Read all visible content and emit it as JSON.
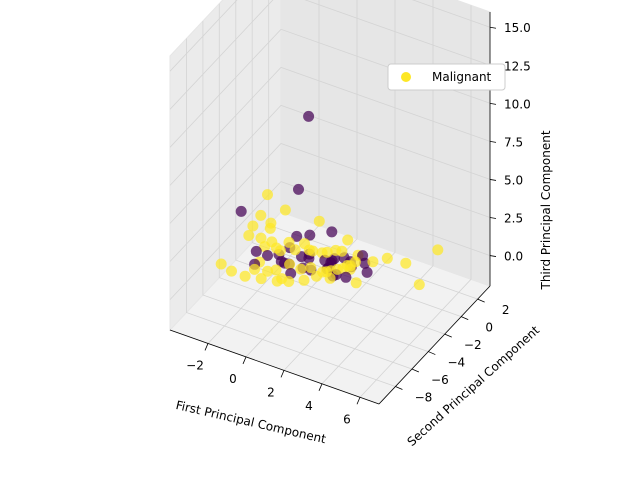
{
  "chart_data": {
    "type": "scatter",
    "projection": "3d",
    "grid": true,
    "legend_placement": "upper-right",
    "axes": {
      "x": {
        "label": "First Principal Component",
        "ticks": [
          "6",
          "4",
          "2",
          "0",
          "−2"
        ],
        "range": [
          -4,
          7
        ]
      },
      "y": {
        "label": "Second Principal Component",
        "ticks": [
          "−8",
          "−6",
          "−4",
          "−2",
          "0",
          "2"
        ],
        "range": [
          -10,
          3.5
        ]
      },
      "z": {
        "label": "Third Principal Component",
        "ticks": [
          "0.0",
          "2.5",
          "5.0",
          "7.5",
          "10.0",
          "12.5",
          "15.0"
        ],
        "range": [
          -2,
          16
        ]
      }
    },
    "series": [
      {
        "name": "Malignant",
        "color": "#fde725",
        "points": [
          [
            6.2,
            -1,
            2.6
          ],
          [
            5.4,
            -1.4,
            0.2
          ],
          [
            4.3,
            -0.5,
            0.6
          ],
          [
            3.5,
            -0.9,
            0.8
          ],
          [
            3,
            -1.5,
            0.7
          ],
          [
            2.6,
            -2.7,
            1.2
          ],
          [
            2.3,
            -3,
            1
          ],
          [
            2,
            -3.5,
            0.9
          ],
          [
            1.6,
            -3.9,
            0.8
          ],
          [
            1.2,
            -4.2,
            0.5
          ],
          [
            0.8,
            -4.8,
            0.4
          ],
          [
            0.3,
            -5.5,
            0.5
          ],
          [
            0,
            -6.2,
            0.8
          ],
          [
            -0.5,
            -7,
            1.2
          ],
          [
            -1,
            -7.8,
            1.6
          ],
          [
            -1.5,
            -8.3,
            2
          ],
          [
            -2,
            -8.4,
            2.3
          ],
          [
            2.9,
            -3.3,
            0.3
          ],
          [
            2.5,
            -3.1,
            0.9
          ],
          [
            2.2,
            -2.4,
            0.6
          ],
          [
            1.9,
            -2.6,
            0.4
          ],
          [
            1.4,
            -2.9,
            0.2
          ],
          [
            1,
            -3,
            0
          ],
          [
            0.6,
            -3.5,
            0.4
          ],
          [
            0.2,
            -3.8,
            0.3
          ],
          [
            -0.3,
            -4,
            0.5
          ],
          [
            -0.8,
            -4.5,
            0.2
          ],
          [
            -1.2,
            -4.6,
            0
          ],
          [
            1.5,
            -1.8,
            0.9
          ],
          [
            1,
            -1.4,
            0.5
          ],
          [
            0.5,
            -1.9,
            0.4
          ],
          [
            0,
            -2.3,
            0.6
          ],
          [
            -0.6,
            -1.5,
            0.3
          ],
          [
            -1.2,
            -2,
            0.4
          ],
          [
            -1.6,
            -2.6,
            0.2
          ],
          [
            -2,
            -3.1,
            0.4
          ],
          [
            -2.4,
            -1.5,
            0.5
          ],
          [
            -2.8,
            -1.7,
            -0.2
          ],
          [
            -3.1,
            -2.5,
            0.3
          ],
          [
            -2.8,
            -0.5,
            0.1
          ],
          [
            -2.6,
            0.8,
            0.3
          ],
          [
            -3.2,
            -0.8,
            0.6
          ],
          [
            0.9,
            -2.2,
            0.8
          ],
          [
            0.4,
            -2.8,
            1
          ],
          [
            -0.4,
            -3.1,
            0.9
          ],
          [
            -1,
            -3.5,
            0.8
          ],
          [
            -1.5,
            -3.4,
            1.1
          ],
          [
            1.7,
            -3.7,
            0.3
          ],
          [
            -0.2,
            -5.2,
            0.3
          ],
          [
            -1.8,
            -4.2,
            0.1
          ],
          [
            -0.9,
            1,
            0.2
          ],
          [
            -3.4,
            -1.3,
            0.1
          ],
          [
            1.2,
            -0.4,
            0.7
          ],
          [
            2,
            -1,
            0.4
          ],
          [
            -0.6,
            -6,
            6.1
          ],
          [
            -1.5,
            -5.5,
            0.5
          ]
        ]
      },
      {
        "name": "",
        "color": "#440154",
        "points": [
          [
            1,
            -4.7,
            11.2
          ],
          [
            0.6,
            -5,
            6.4
          ],
          [
            -2.2,
            -5.5,
            4
          ],
          [
            3,
            -2.2,
            0.4
          ],
          [
            2.2,
            -0.9,
            0.4
          ],
          [
            2,
            -1.8,
            0.1
          ],
          [
            2.4,
            -1.1,
            0.1
          ],
          [
            1.8,
            -3.2,
            0.3
          ],
          [
            1.5,
            -2.9,
            -0.1
          ],
          [
            1.2,
            -2.7,
            0.2
          ],
          [
            1.1,
            -0.6,
            -0.4
          ],
          [
            0.7,
            -1.3,
            -0.5
          ],
          [
            0.9,
            -2.2,
            -0.3
          ],
          [
            0.6,
            -1.8,
            -0.1
          ],
          [
            0.3,
            -2.8,
            -0.3
          ],
          [
            0.5,
            -0.7,
            -0.8
          ],
          [
            -0.2,
            -2.6,
            -0.5
          ],
          [
            -0.3,
            -1.6,
            -0.2
          ],
          [
            -0.5,
            -1.2,
            -0.8
          ],
          [
            -0.8,
            -1.4,
            -0.7
          ],
          [
            -1,
            -3,
            -0.3
          ],
          [
            -1.3,
            -2.7,
            -0.5
          ],
          [
            -1.2,
            -1.9,
            0
          ],
          [
            -1.6,
            -2.3,
            -0.4
          ],
          [
            -1.9,
            -3,
            -0.2
          ],
          [
            -2.1,
            -3.9,
            0.5
          ],
          [
            -1.8,
            -4.8,
            0.3
          ],
          [
            -0.2,
            -4.1,
            0
          ],
          [
            -0.5,
            -3.6,
            0.2
          ],
          [
            2.4,
            -3.4,
            0.5
          ],
          [
            0.8,
            -1.1,
            -0.3
          ],
          [
            -1.4,
            -0.6,
            -0.1
          ],
          [
            0.1,
            0.2,
            0.4
          ],
          [
            -1.1,
            0.3,
            -0.4
          ],
          [
            1.6,
            -1,
            -0.2
          ]
        ]
      }
    ]
  }
}
